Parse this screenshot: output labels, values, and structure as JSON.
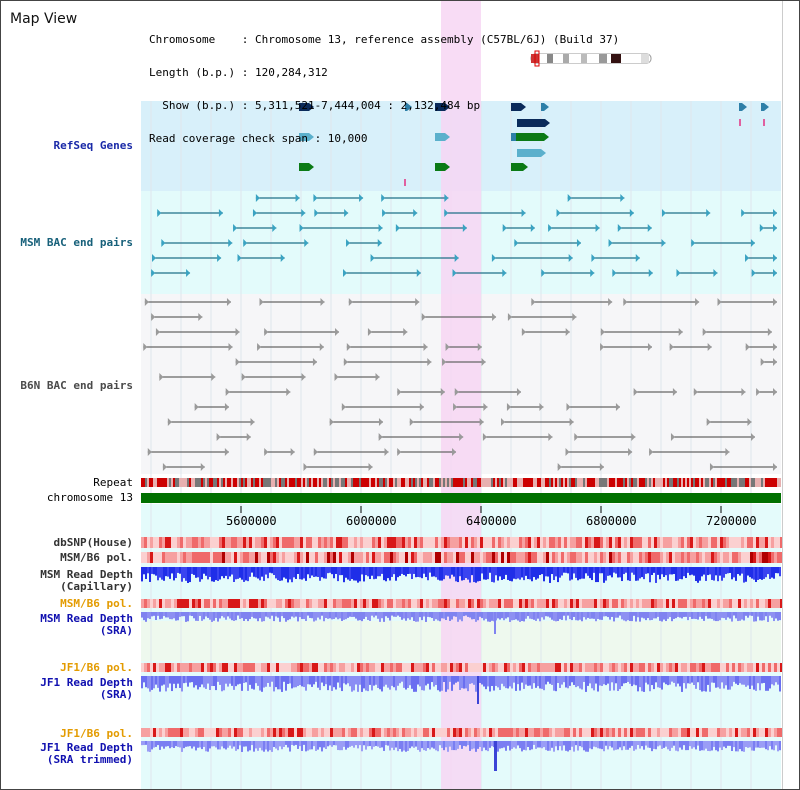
{
  "title": "Map View",
  "info": {
    "line1": "Chromosome    : Chromosome 13, reference assembly (C57BL/6J) (Build 37)",
    "line2": "Length (b.p.) : 120,284,312",
    "line3": "  Show (b.p.) : 5,311,521-7,444,004 : 2,132,484 bp",
    "line4": "Read coverage check span : 10,000"
  },
  "tracks": {
    "refseq": "RefSeq Genes",
    "msm_bac": "MSM BAC end pairs",
    "b6n_bac": "B6N BAC end pairs",
    "repeat": "Repeat",
    "chromosome": "chromosome 13",
    "dbsnp": "dbSNP(House)",
    "msm_b6_pol": "MSM/B6 pol.",
    "msm_read_depth_cap_1": "MSM Read Depth",
    "msm_read_depth_cap_2": "(Capillary)",
    "msm_b6_pol_2": "MSM/B6 pol.",
    "msm_read_depth_sra_1": "MSM Read Depth",
    "msm_read_depth_sra_2": "(SRA)",
    "jf1_b6_pol": "JF1/B6 pol.",
    "jf1_read_depth_sra_1": "JF1 Read Depth",
    "jf1_read_depth_sra_2": "(SRA)",
    "jf1_b6_pol_2": "JF1/B6 pol.",
    "jf1_read_depth_trim_1": "JF1 Read Depth",
    "jf1_read_depth_trim_2": "(SRA trimmed)"
  },
  "ruler": {
    "ticks": [
      "5600000",
      "6000000",
      "6400000",
      "6800000",
      "7200000"
    ]
  },
  "colors": {
    "refseq_bg": "#d8f0fa",
    "msm_bac_bg": "#e3fbfb",
    "highlight": "#f7d6f3",
    "chromosome": "#007000",
    "repeat_red": "#cc0000",
    "depth_blue": "#1f2ee8",
    "depth_light": "#7f83f0"
  }
}
